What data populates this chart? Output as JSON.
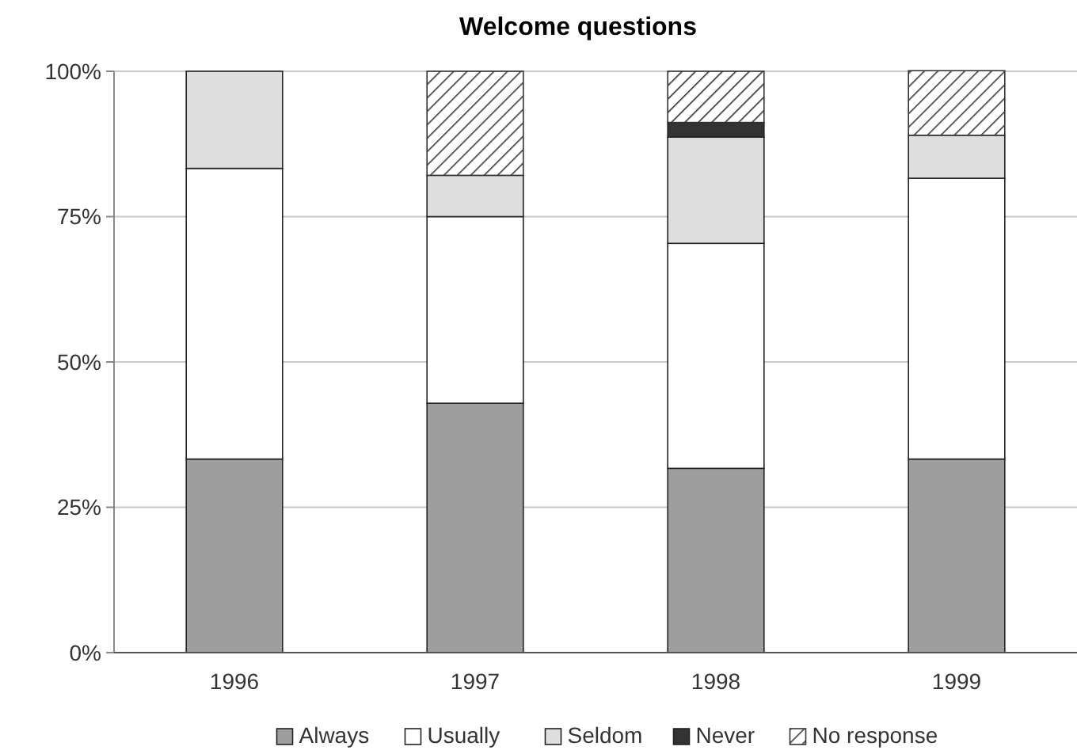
{
  "chart_data": {
    "type": "bar",
    "title": "Welcome questions",
    "stacked": true,
    "categories": [
      "1996",
      "1997",
      "1998",
      "1999"
    ],
    "series": [
      {
        "name": "Always",
        "color": "#9e9e9e",
        "values": [
          33.3,
          42.9,
          31.7,
          33.3
        ]
      },
      {
        "name": "Usually",
        "color": "#ffffff",
        "values": [
          50,
          32.1,
          38.7,
          48.3
        ]
      },
      {
        "name": "Seldom",
        "color": "#dedede",
        "values": [
          16.7,
          7.1,
          18.3,
          7.4
        ]
      },
      {
        "name": "Never",
        "color": "#333333",
        "values": [
          0,
          0,
          2.5,
          0
        ]
      },
      {
        "name": "No response",
        "color": "#333333",
        "values": [
          0,
          17.9,
          8.8,
          11.1
        ]
      }
    ],
    "ylim": [
      0,
      100
    ],
    "yticks": [
      {
        "value": 0,
        "label": "0%"
      },
      {
        "value": 25,
        "label": "25%"
      },
      {
        "value": 50,
        "label": "50%"
      },
      {
        "value": 75,
        "label": "75%"
      },
      {
        "value": 100,
        "label": "100%"
      }
    ],
    "grid": "y",
    "legend": "bottom"
  }
}
